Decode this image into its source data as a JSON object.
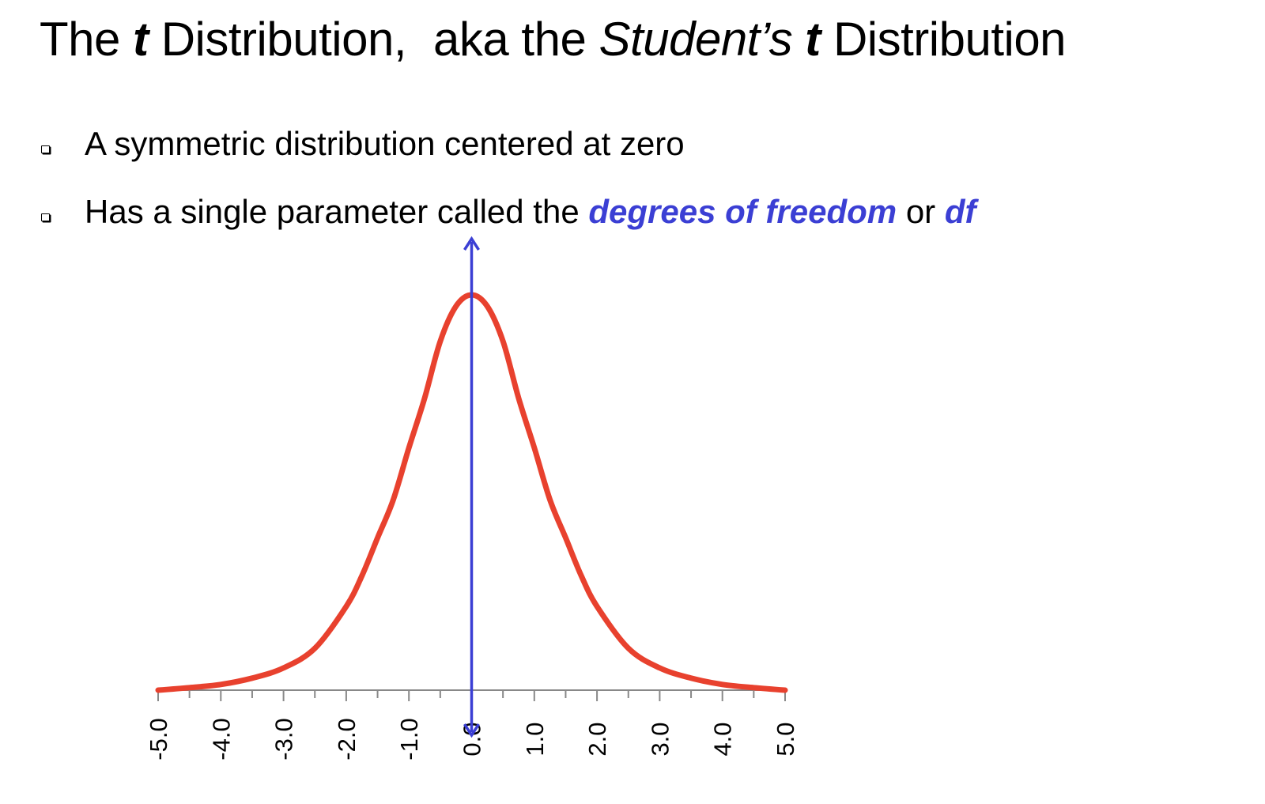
{
  "title": {
    "part1": "The",
    "t": "t",
    "part2": "Distribution,",
    "part3": "aka the",
    "students": "Student’s",
    "t2": "t",
    "part4": "Distribution"
  },
  "bullets": [
    {
      "text": "A symmetric distribution centered at zero"
    },
    {
      "text_before": "Has a single parameter called the",
      "term1": "degrees of freedom",
      "connector": "or",
      "term2": "df"
    }
  ],
  "colors": {
    "curve": "#e8412e",
    "arrow": "#3b3fd4",
    "term": "#3b3fd4",
    "axis": "#888888"
  },
  "chart_data": {
    "type": "line",
    "series": [
      {
        "x": [
          -5.0,
          -4.5,
          -4.0,
          -3.5,
          -3.0,
          -2.5,
          -2.0,
          -1.75,
          -1.5,
          -1.25,
          -1.0,
          -0.75,
          -0.5,
          -0.25,
          0.0,
          0.25,
          0.5,
          0.75,
          1.0,
          1.25,
          1.5,
          1.75,
          2.0,
          2.5,
          3.0,
          3.5,
          4.0,
          4.5,
          5.0
        ],
        "y": [
          0.0,
          0.004,
          0.009,
          0.019,
          0.035,
          0.066,
          0.132,
          0.18,
          0.24,
          0.3,
          0.382,
          0.46,
          0.55,
          0.605,
          0.623,
          0.605,
          0.55,
          0.46,
          0.382,
          0.3,
          0.24,
          0.18,
          0.132,
          0.066,
          0.035,
          0.019,
          0.009,
          0.004,
          0.0
        ]
      }
    ],
    "xlim": [
      -5.0,
      5.0
    ],
    "ylim": [
      0,
      0.7
    ],
    "x_tick_labels": [
      "-5.0",
      "-4.0",
      "-3.0",
      "-2.0",
      "-1.0",
      "0.0",
      "1.0",
      "2.0",
      "3.0",
      "4.0",
      "5.0"
    ],
    "minor_tick_step": 0.5,
    "tick_label_orientation": "rotated-vertical",
    "annotation": "vertical arrow at x = 0",
    "grid": false,
    "legend": "none"
  }
}
